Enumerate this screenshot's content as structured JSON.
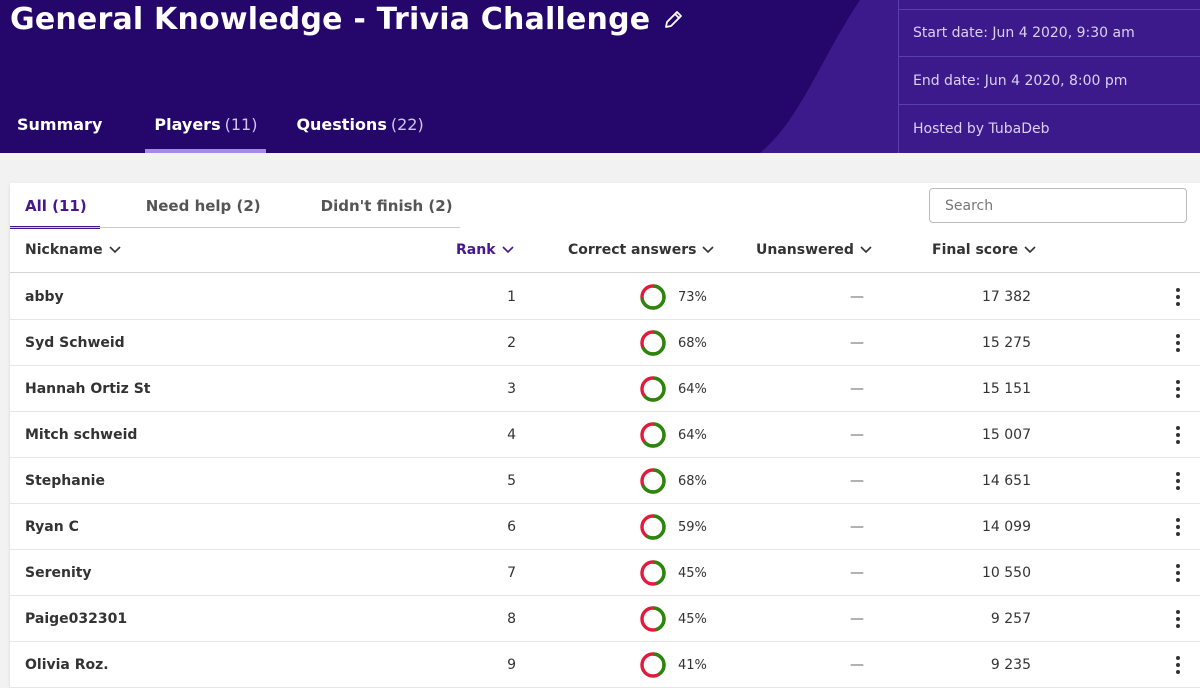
{
  "header": {
    "title": "General Knowledge - Trivia Challenge",
    "tabs": [
      {
        "label": "Summary",
        "count": ""
      },
      {
        "label": "Players",
        "count": "(11)"
      },
      {
        "label": "Questions",
        "count": "(22)"
      }
    ],
    "active_tab": "Players",
    "meta": {
      "start": "Start date: Jun 4 2020, 9:30 am",
      "end": "End date: Jun 4 2020, 8:00 pm",
      "host": "Hosted by TubaDeb"
    }
  },
  "filters": {
    "items": [
      "All (11)",
      "Need help (2)",
      "Didn't finish (2)"
    ],
    "active": "All (11)",
    "search_placeholder": "Search"
  },
  "table": {
    "columns": [
      "Nickname",
      "Rank",
      "Correct answers",
      "Unanswered",
      "Final score"
    ],
    "sorted_column": "Rank",
    "rows": [
      {
        "nickname": "abby",
        "rank": "1",
        "correct_pct": "73%",
        "correct": 0.73,
        "unanswered": "—",
        "score": "17 382"
      },
      {
        "nickname": "Syd Schweid",
        "rank": "2",
        "correct_pct": "68%",
        "correct": 0.68,
        "unanswered": "—",
        "score": "15 275"
      },
      {
        "nickname": "Hannah Ortiz St",
        "rank": "3",
        "correct_pct": "64%",
        "correct": 0.64,
        "unanswered": "—",
        "score": "15 151"
      },
      {
        "nickname": "Mitch schweid",
        "rank": "4",
        "correct_pct": "64%",
        "correct": 0.64,
        "unanswered": "—",
        "score": "15 007"
      },
      {
        "nickname": "Stephanie",
        "rank": "5",
        "correct_pct": "68%",
        "correct": 0.68,
        "unanswered": "—",
        "score": "14 651"
      },
      {
        "nickname": "Ryan C",
        "rank": "6",
        "correct_pct": "59%",
        "correct": 0.59,
        "unanswered": "—",
        "score": "14 099"
      },
      {
        "nickname": "Serenity",
        "rank": "7",
        "correct_pct": "45%",
        "correct": 0.45,
        "unanswered": "—",
        "score": "10 550"
      },
      {
        "nickname": "Paige032301",
        "rank": "8",
        "correct_pct": "45%",
        "correct": 0.45,
        "unanswered": "—",
        "score": "9 257"
      },
      {
        "nickname": "Olivia Roz.",
        "rank": "9",
        "correct_pct": "41%",
        "correct": 0.41,
        "unanswered": "—",
        "score": "9 235"
      }
    ]
  },
  "colors": {
    "header_bg": "#25076b",
    "accent": "#46178f",
    "correct": "#26890c",
    "incorrect": "#e21b3c"
  },
  "icons": {
    "edit": "pencil-icon",
    "sort": "chevron-down-icon",
    "more": "kebab-menu-icon"
  }
}
